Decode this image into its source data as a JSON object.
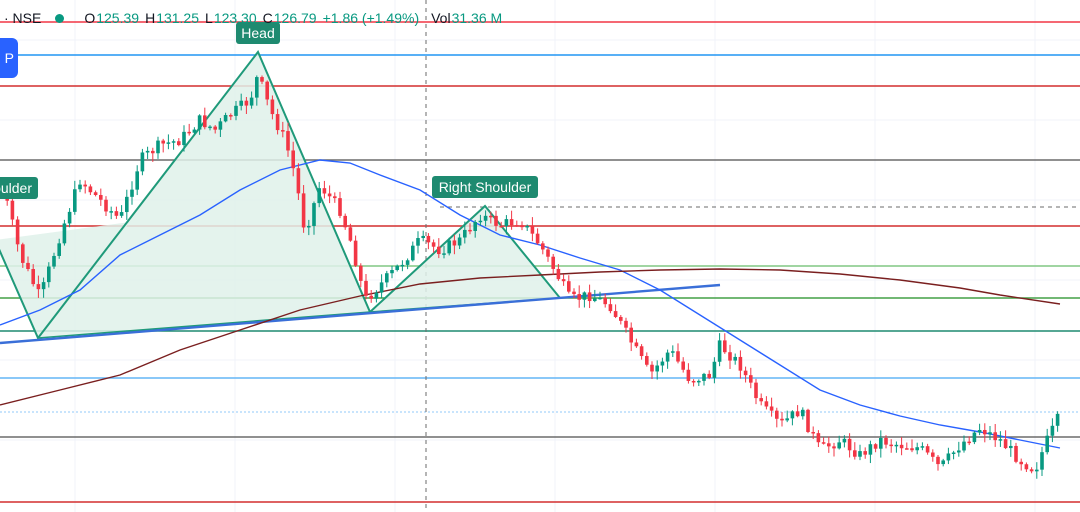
{
  "legend": {
    "symbol": "· NSE",
    "open_key": "O",
    "open": "125.39",
    "high_key": "H",
    "high": "131.25",
    "low_key": "L",
    "low": "123.30",
    "close_key": "C",
    "close": "126.79",
    "change": "+1.86 (+1.49%)",
    "vol_key": "Vol",
    "volume": "31.36 M"
  },
  "blue_button": "P",
  "colors": {
    "up": "#089981",
    "down": "#f23645",
    "ma_blue": "#2962ff",
    "ma_brown": "#7a1f1f",
    "pattern_fill": "#dff1ea",
    "pattern_stroke": "#1f9a7a",
    "label_bg": "#1e8a70"
  },
  "chart_data": {
    "type": "candlestick",
    "annotations": [
      {
        "label": "Shoulder",
        "kind": "left-shoulder"
      },
      {
        "label": "Head",
        "kind": "head"
      },
      {
        "label": "Right Shoulder",
        "kind": "right-shoulder"
      }
    ],
    "price_path": [
      [
        0,
        175
      ],
      [
        20,
        255
      ],
      [
        40,
        298
      ],
      [
        60,
        235
      ],
      [
        80,
        180
      ],
      [
        100,
        200
      ],
      [
        120,
        220
      ],
      [
        140,
        160
      ],
      [
        160,
        145
      ],
      [
        180,
        140
      ],
      [
        200,
        120
      ],
      [
        215,
        130
      ],
      [
        230,
        115
      ],
      [
        250,
        100
      ],
      [
        258,
        75
      ],
      [
        270,
        110
      ],
      [
        285,
        140
      ],
      [
        295,
        175
      ],
      [
        305,
        232
      ],
      [
        320,
        185
      ],
      [
        340,
        210
      ],
      [
        352,
        245
      ],
      [
        365,
        300
      ],
      [
        380,
        285
      ],
      [
        400,
        265
      ],
      [
        420,
        240
      ],
      [
        440,
        250
      ],
      [
        460,
        240
      ],
      [
        480,
        215
      ],
      [
        500,
        225
      ],
      [
        520,
        220
      ],
      [
        540,
        245
      ],
      [
        560,
        280
      ],
      [
        570,
        300
      ],
      [
        590,
        295
      ],
      [
        610,
        305
      ],
      [
        630,
        340
      ],
      [
        650,
        375
      ],
      [
        670,
        350
      ],
      [
        690,
        380
      ],
      [
        710,
        375
      ],
      [
        720,
        345
      ],
      [
        740,
        365
      ],
      [
        760,
        405
      ],
      [
        780,
        425
      ],
      [
        800,
        410
      ],
      [
        820,
        450
      ],
      [
        840,
        440
      ],
      [
        860,
        455
      ],
      [
        880,
        440
      ],
      [
        900,
        445
      ],
      [
        920,
        448
      ],
      [
        940,
        468
      ],
      [
        960,
        445
      ],
      [
        980,
        428
      ],
      [
        1000,
        440
      ],
      [
        1020,
        460
      ],
      [
        1035,
        470
      ],
      [
        1045,
        445
      ],
      [
        1060,
        415
      ]
    ],
    "series": [
      {
        "kind": "moving-average",
        "color": "#2962ff",
        "points": [
          [
            0,
            325
          ],
          [
            40,
            310
          ],
          [
            80,
            290
          ],
          [
            120,
            255
          ],
          [
            160,
            235
          ],
          [
            200,
            215
          ],
          [
            240,
            190
          ],
          [
            280,
            170
          ],
          [
            320,
            160
          ],
          [
            350,
            163
          ],
          [
            380,
            175
          ],
          [
            420,
            190
          ],
          [
            460,
            215
          ],
          [
            500,
            235
          ],
          [
            540,
            245
          ],
          [
            580,
            258
          ],
          [
            620,
            270
          ],
          [
            660,
            290
          ],
          [
            700,
            315
          ],
          [
            740,
            340
          ],
          [
            780,
            365
          ],
          [
            820,
            390
          ],
          [
            860,
            405
          ],
          [
            900,
            416
          ],
          [
            940,
            425
          ],
          [
            980,
            432
          ],
          [
            1020,
            440
          ],
          [
            1060,
            448
          ]
        ]
      },
      {
        "kind": "moving-average",
        "color": "#7a1f1f",
        "points": [
          [
            0,
            405
          ],
          [
            60,
            390
          ],
          [
            120,
            375
          ],
          [
            180,
            350
          ],
          [
            240,
            330
          ],
          [
            300,
            310
          ],
          [
            360,
            296
          ],
          [
            420,
            284
          ],
          [
            480,
            278
          ],
          [
            540,
            275
          ],
          [
            600,
            272
          ],
          [
            660,
            270
          ],
          [
            720,
            269
          ],
          [
            780,
            270
          ],
          [
            840,
            274
          ],
          [
            900,
            280
          ],
          [
            960,
            288
          ],
          [
            1000,
            295
          ],
          [
            1060,
            304
          ]
        ]
      }
    ],
    "pattern": {
      "left_shoulder": [
        [
          -5,
          240
        ],
        [
          38,
          338
        ],
        [
          130,
          222
        ],
        [
          258,
          52
        ],
        [
          370,
          312
        ]
      ],
      "head_triangle": [
        [
          38,
          338
        ],
        [
          258,
          52
        ],
        [
          370,
          312
        ]
      ],
      "right_triangle": [
        [
          370,
          312
        ],
        [
          485,
          206
        ],
        [
          560,
          298
        ]
      ],
      "neckline": [
        [
          0,
          343
        ],
        [
          720,
          285
        ]
      ],
      "dashed_vertical_x": 426,
      "dashed_horizontal_y": 207
    },
    "horizontal_lines": [
      {
        "y": 22,
        "color": "#f23645"
      },
      {
        "y": 55,
        "color": "#2196f3"
      },
      {
        "y": 86,
        "color": "#d32f2f"
      },
      {
        "y": 160,
        "color": "#6b6b6b"
      },
      {
        "y": 226,
        "color": "#d32f2f"
      },
      {
        "y": 266,
        "color": "#81c784"
      },
      {
        "y": 298,
        "color": "#43a047"
      },
      {
        "y": 331,
        "color": "#1e8a70"
      },
      {
        "y": 378,
        "color": "#64b5f6"
      },
      {
        "y": 412,
        "color": "#90caf9"
      },
      {
        "y": 437,
        "color": "#6b6b6b"
      },
      {
        "y": 502,
        "color": "#d32f2f"
      }
    ]
  }
}
